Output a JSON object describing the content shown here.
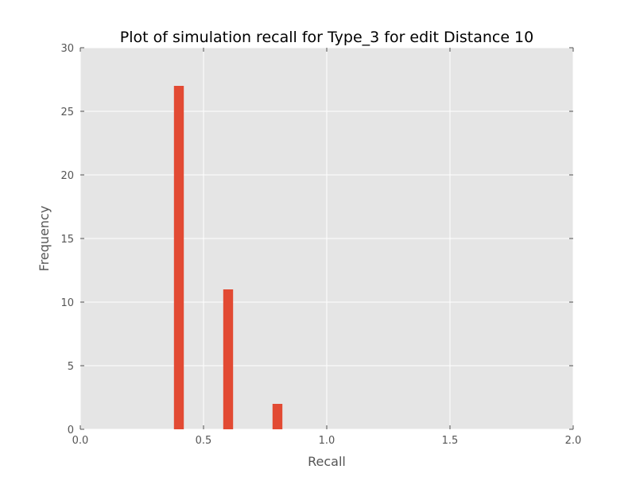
{
  "chart_data": {
    "type": "bar",
    "title": "Plot of simulation recall for Type_3 for edit Distance 10",
    "xlabel": "Recall",
    "ylabel": "Frequency",
    "xlim": [
      0.0,
      2.0
    ],
    "ylim": [
      0,
      30
    ],
    "x_ticks": [
      "0.0",
      "0.5",
      "1.0",
      "1.5",
      "2.0"
    ],
    "y_ticks": [
      "0",
      "5",
      "10",
      "15",
      "20",
      "25",
      "30"
    ],
    "bin_width": 0.04,
    "bins": [
      {
        "x": 0.4,
        "value": 27
      },
      {
        "x": 0.6,
        "value": 11
      },
      {
        "x": 0.8,
        "value": 2
      }
    ],
    "grid": true,
    "colors": {
      "bar": "#E24A33",
      "plot_background": "#E5E5E5",
      "grid": "#FFFFFF"
    }
  }
}
